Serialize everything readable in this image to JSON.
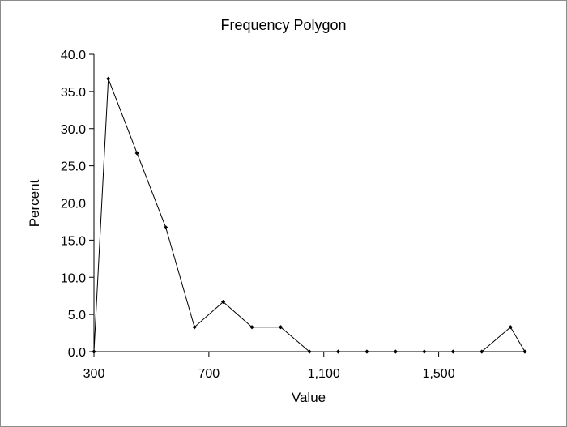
{
  "chart_data": {
    "type": "line",
    "title": "Frequency Polygon",
    "xlabel": "Value",
    "ylabel": "Percent",
    "xlim": [
      300,
      1800
    ],
    "ylim": [
      0,
      40
    ],
    "x_ticks": [
      {
        "value": 300,
        "label": "300"
      },
      {
        "value": 700,
        "label": "700"
      },
      {
        "value": 1100,
        "label": "1,100"
      },
      {
        "value": 1500,
        "label": "1,500"
      }
    ],
    "y_ticks": [
      {
        "value": 0,
        "label": "0.0"
      },
      {
        "value": 5,
        "label": "5.0"
      },
      {
        "value": 10,
        "label": "10.0"
      },
      {
        "value": 15,
        "label": "15.0"
      },
      {
        "value": 20,
        "label": "20.0"
      },
      {
        "value": 25,
        "label": "25.0"
      },
      {
        "value": 30,
        "label": "30.0"
      },
      {
        "value": 35,
        "label": "35.0"
      },
      {
        "value": 40,
        "label": "40.0"
      }
    ],
    "grid": false,
    "legend": "none",
    "line_color": "#000000",
    "series": [
      {
        "x": [
          300,
          350,
          450,
          550,
          650,
          750,
          850,
          950,
          1050,
          1150,
          1250,
          1350,
          1450,
          1550,
          1650,
          1750,
          1800
        ],
        "y": [
          0.0,
          36.7,
          26.7,
          16.7,
          3.3,
          6.7,
          3.3,
          3.3,
          0.0,
          0.0,
          0.0,
          0.0,
          0.0,
          0.0,
          0.0,
          3.3,
          0.0
        ]
      }
    ]
  }
}
